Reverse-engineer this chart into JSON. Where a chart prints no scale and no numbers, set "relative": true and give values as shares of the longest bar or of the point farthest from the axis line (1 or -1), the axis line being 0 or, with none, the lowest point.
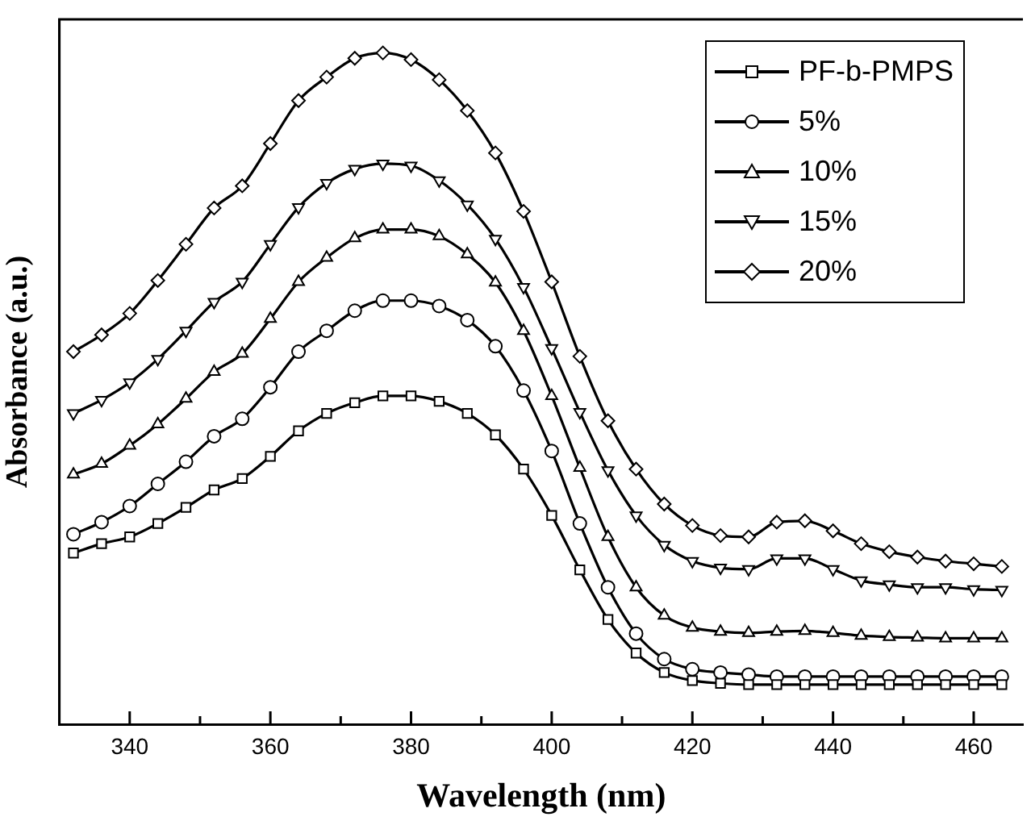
{
  "chart_data": {
    "type": "line",
    "xlabel": "Wavelength (nm)",
    "ylabel": "Absorbance (a.u.)",
    "relative": true,
    "legend": "top right",
    "grid": false,
    "line_style": "solid",
    "xlim": [
      330,
      467
    ],
    "xticks": [
      340,
      {
        "value": 350,
        "label": null
      },
      360,
      {
        "value": 370,
        "label": null
      },
      380,
      {
        "value": 390,
        "label": null
      },
      400,
      {
        "value": 410,
        "label": null
      },
      420,
      {
        "value": 430,
        "label": null
      },
      440,
      {
        "value": 450,
        "label": null
      },
      460
    ],
    "x": [
      332,
      336,
      340,
      344,
      348,
      352,
      356,
      360,
      364,
      368,
      372,
      376,
      380,
      384,
      388,
      392,
      396,
      400,
      404,
      408,
      412,
      416,
      420,
      424,
      428,
      432,
      436,
      440,
      444,
      448,
      452,
      456,
      460,
      464
    ],
    "series": [
      {
        "name": "PF-b-PMPS",
        "color": "#000000",
        "marker": "square",
        "values": [
          0.255,
          0.269,
          0.279,
          0.299,
          0.323,
          0.349,
          0.366,
          0.399,
          0.437,
          0.463,
          0.479,
          0.489,
          0.489,
          0.481,
          0.463,
          0.431,
          0.38,
          0.311,
          0.23,
          0.156,
          0.106,
          0.077,
          0.065,
          0.061,
          0.059,
          0.059,
          0.059,
          0.059,
          0.059,
          0.059,
          0.059,
          0.059,
          0.059,
          0.059
        ]
      },
      {
        "name": "5%",
        "color": "#000000",
        "marker": "circle",
        "values": [
          0.283,
          0.301,
          0.325,
          0.358,
          0.391,
          0.429,
          0.455,
          0.502,
          0.555,
          0.586,
          0.616,
          0.631,
          0.631,
          0.623,
          0.602,
          0.563,
          0.497,
          0.407,
          0.299,
          0.204,
          0.135,
          0.097,
          0.082,
          0.077,
          0.074,
          0.071,
          0.071,
          0.071,
          0.071,
          0.071,
          0.071,
          0.071,
          0.071,
          0.071
        ]
      },
      {
        "name": "10%",
        "color": "#000000",
        "marker": "triangle",
        "values": [
          0.372,
          0.388,
          0.415,
          0.447,
          0.485,
          0.525,
          0.552,
          0.604,
          0.659,
          0.695,
          0.724,
          0.737,
          0.737,
          0.727,
          0.7,
          0.658,
          0.586,
          0.489,
          0.382,
          0.279,
          0.204,
          0.162,
          0.144,
          0.138,
          0.136,
          0.138,
          0.139,
          0.136,
          0.132,
          0.13,
          0.129,
          0.128,
          0.128,
          0.128
        ]
      },
      {
        "name": "15%",
        "color": "#000000",
        "marker": "triangle-down",
        "values": [
          0.463,
          0.483,
          0.509,
          0.544,
          0.586,
          0.629,
          0.659,
          0.715,
          0.77,
          0.806,
          0.827,
          0.835,
          0.832,
          0.81,
          0.774,
          0.723,
          0.651,
          0.56,
          0.465,
          0.378,
          0.311,
          0.267,
          0.243,
          0.233,
          0.231,
          0.247,
          0.247,
          0.231,
          0.214,
          0.208,
          0.204,
          0.204,
          0.201,
          0.2
        ]
      },
      {
        "name": "20%",
        "color": "#000000",
        "marker": "diamond",
        "values": [
          0.555,
          0.58,
          0.612,
          0.661,
          0.715,
          0.769,
          0.802,
          0.865,
          0.929,
          0.964,
          0.992,
          1,
          0.99,
          0.96,
          0.914,
          0.851,
          0.764,
          0.659,
          0.548,
          0.452,
          0.38,
          0.328,
          0.296,
          0.281,
          0.279,
          0.301,
          0.303,
          0.288,
          0.269,
          0.257,
          0.249,
          0.243,
          0.239,
          0.235
        ]
      }
    ]
  }
}
